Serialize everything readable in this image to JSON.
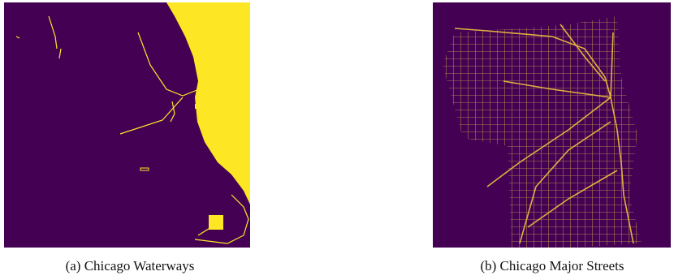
{
  "figures": [
    {
      "caption": "(a) Chicago Waterways"
    },
    {
      "caption": "(b) Chicago Major Streets"
    }
  ]
}
